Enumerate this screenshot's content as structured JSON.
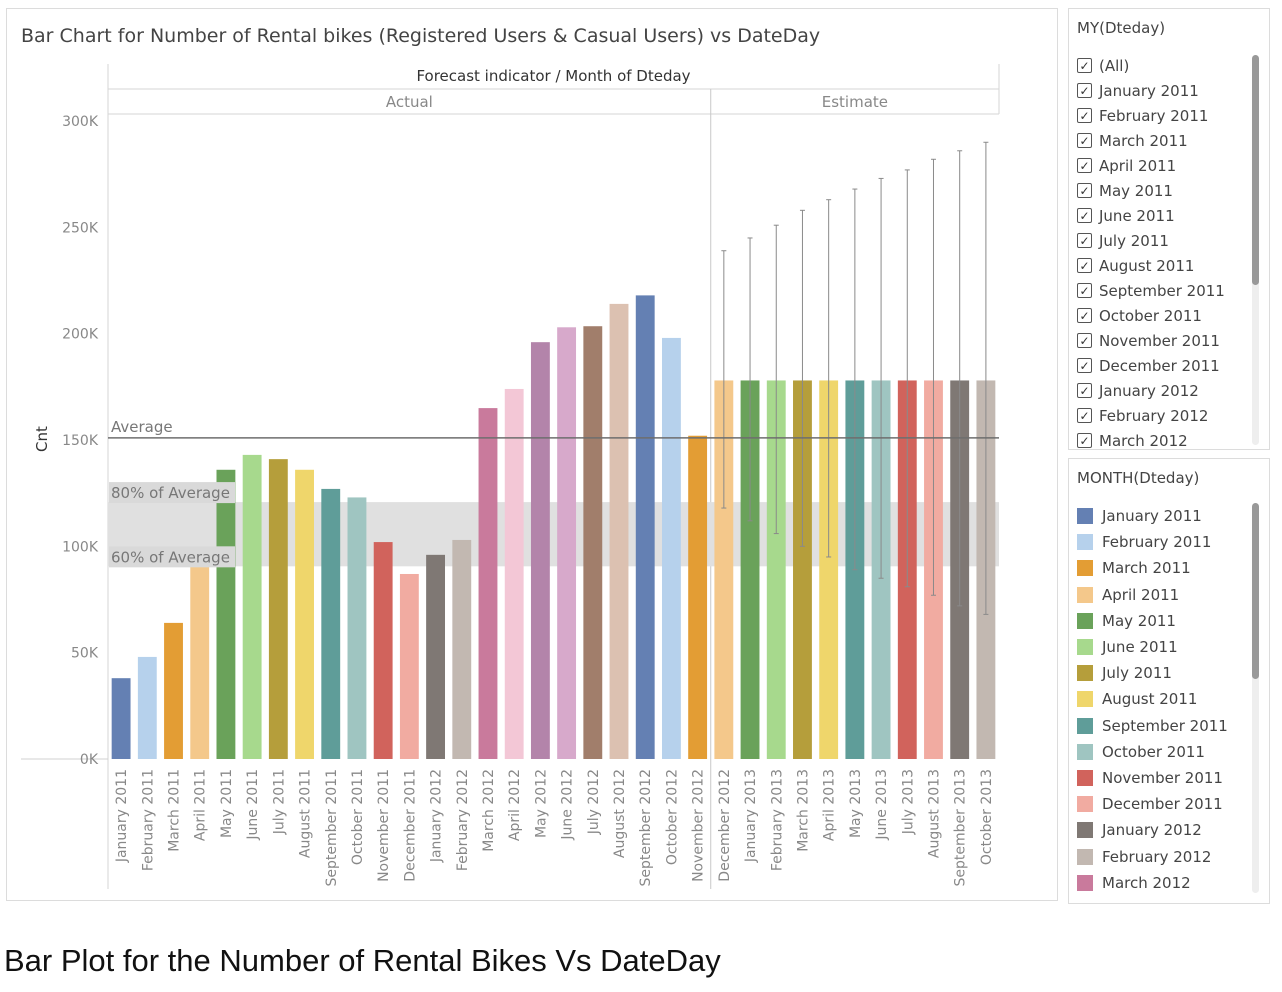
{
  "chart_data": {
    "type": "bar",
    "title": "Bar Chart for Number of Rental bikes (Registered Users & Casual Users) vs DateDay",
    "header_label": "Forecast indicator  /  Month of Dteday",
    "ylabel": "Cnt",
    "ylim": [
      0,
      300000
    ],
    "y_ticks": [
      {
        "value": 0,
        "label": "0K"
      },
      {
        "value": 50000,
        "label": "50K"
      },
      {
        "value": 100000,
        "label": "100K"
      },
      {
        "value": 150000,
        "label": "150K"
      },
      {
        "value": 200000,
        "label": "200K"
      },
      {
        "value": 250000,
        "label": "250K"
      },
      {
        "value": 300000,
        "label": "300K"
      }
    ],
    "panes": [
      {
        "name": "Actual",
        "categories": [
          "January 2011",
          "February 2011",
          "March 2011",
          "April 2011",
          "May 2011",
          "June 2011",
          "July 2011",
          "August 2011",
          "September 2011",
          "October 2011",
          "November 2011",
          "December 2011",
          "January 2012",
          "February 2012",
          "March 2012",
          "April 2012",
          "May 2012",
          "June 2012",
          "July 2012",
          "August 2012",
          "September 2012",
          "October 2012",
          "November 2012"
        ],
        "values": [
          38000,
          48000,
          64000,
          94000,
          136000,
          143000,
          141000,
          136000,
          127000,
          123000,
          102000,
          87000,
          96000,
          103000,
          165000,
          174000,
          196000,
          203000,
          203500,
          214000,
          218000,
          198000,
          152000
        ]
      },
      {
        "name": "Estimate",
        "categories": [
          "December 2012",
          "January 2013",
          "February 2013",
          "March 2013",
          "April 2013",
          "May 2013",
          "June 2013",
          "July 2013",
          "August 2013",
          "September 2013",
          "October 2013"
        ],
        "values": [
          178000,
          178000,
          178000,
          178000,
          178000,
          178000,
          178000,
          178000,
          178000,
          178000,
          178000
        ],
        "interval_high": [
          239000,
          245000,
          251000,
          258000,
          263000,
          268000,
          273000,
          277000,
          282000,
          286000,
          290000
        ],
        "interval_low": [
          118000,
          112000,
          106000,
          100000,
          95000,
          89000,
          85000,
          81000,
          77000,
          72000,
          68000
        ]
      }
    ],
    "reference_lines": [
      {
        "label": "Average",
        "value": 151000
      },
      {
        "label": "80% of Average",
        "value": 120800
      },
      {
        "label": "60% of Average",
        "value": 90600
      }
    ],
    "colors": [
      "#6480b3",
      "#b6d1ec",
      "#e39d34",
      "#f4c88b",
      "#6aa25a",
      "#a7d98d",
      "#b59e3b",
      "#efd66b",
      "#5f9d99",
      "#9fc5c1",
      "#d1635c",
      "#f1aba1",
      "#7f7874",
      "#c2b8b1",
      "#c97a9c",
      "#f3c7d6",
      "#b384aa",
      "#d7a9cb",
      "#a17e6b",
      "#dcc1b1"
    ],
    "band_color": "#e0e0e0",
    "grid": false
  },
  "filters": {
    "my_title": "MY(Dteday)",
    "my_items": [
      "(All)",
      "January 2011",
      "February 2011",
      "March 2011",
      "April 2011",
      "May 2011",
      "June 2011",
      "July 2011",
      "August 2011",
      "September 2011",
      "October 2011",
      "November 2011",
      "December 2011",
      "January 2012",
      "February 2012",
      "March 2012"
    ],
    "check_glyph": "✓",
    "month_title": "MONTH(Dteday)",
    "month_items": [
      "January 2011",
      "February 2011",
      "March 2011",
      "April 2011",
      "May 2011",
      "June 2011",
      "July 2011",
      "August 2011",
      "September 2011",
      "October 2011",
      "November 2011",
      "December 2011",
      "January 2012",
      "February 2012",
      "March 2012"
    ]
  },
  "caption": "Bar Plot for the Number of Rental Bikes Vs DateDay"
}
